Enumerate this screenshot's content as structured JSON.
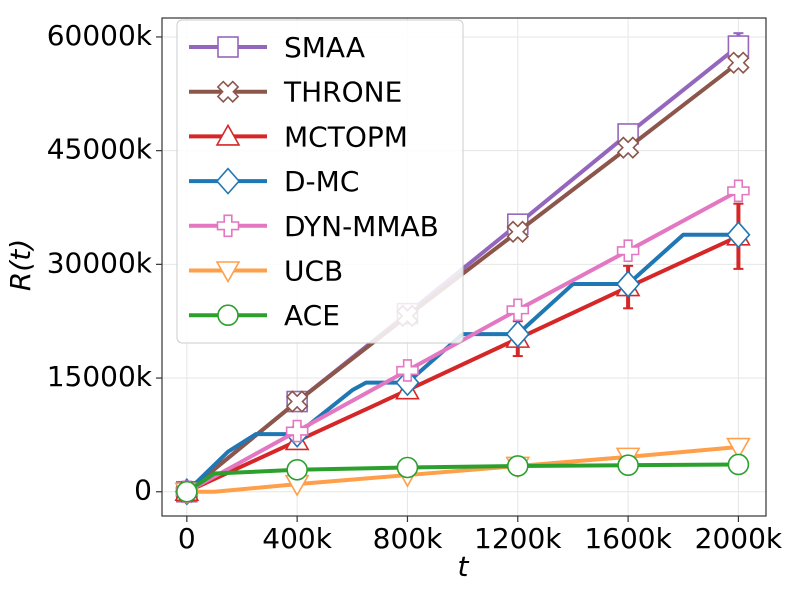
{
  "chart_data": {
    "type": "line",
    "xlabel": "t",
    "ylabel": "R(t)",
    "xlim": [
      -90000,
      2100000
    ],
    "ylim": [
      -3200000,
      62500000
    ],
    "xticks": [
      0,
      {
        "value": 400000,
        "label": "400k"
      },
      {
        "value": 800000,
        "label": "800k"
      },
      {
        "value": 1200000,
        "label": "1200k"
      },
      {
        "value": 1600000,
        "label": "1600k"
      },
      {
        "value": 2000000,
        "label": "2000k"
      }
    ],
    "yticks": [
      0,
      {
        "value": 15000000,
        "label": "15000k"
      },
      {
        "value": 30000000,
        "label": "30000k"
      },
      {
        "value": 45000000,
        "label": "45000k"
      },
      {
        "value": 60000000,
        "label": "60000k"
      }
    ],
    "grid": true,
    "legend": "upper left",
    "series": [
      {
        "name": "SMAA",
        "color": "#9467bd",
        "marker": "square",
        "x": [
          0,
          400000,
          800000,
          1200000,
          1600000,
          2000000
        ],
        "values": [
          0,
          11900000,
          23500000,
          35300000,
          47200000,
          58800000
        ],
        "errors": [
          null,
          null,
          null,
          null,
          800000,
          1700000
        ]
      },
      {
        "name": "THRONE",
        "color": "#8c564b",
        "marker": "x",
        "x": [
          0,
          400000,
          800000,
          1200000,
          1600000,
          2000000
        ],
        "values": [
          0,
          11900000,
          23200000,
          34300000,
          45400000,
          56600000
        ],
        "errors": [
          null,
          null,
          null,
          null,
          null,
          null
        ]
      },
      {
        "name": "MCTOPM",
        "color": "#d62728",
        "marker": "triangle-up",
        "x": [
          0,
          400000,
          800000,
          1200000,
          1600000,
          2000000
        ],
        "values": [
          0,
          6700000,
          13400000,
          20200000,
          27000000,
          33700000
        ],
        "errors": [
          null,
          null,
          900000,
          2300000,
          2800000,
          4300000
        ]
      },
      {
        "name": "D-MC",
        "color": "#1f77b4",
        "marker": "diamond",
        "x": [
          0,
          150000,
          250000,
          400000,
          600000,
          650000,
          800000,
          1000000,
          1200000,
          1400000,
          1600000,
          1800000,
          2000000
        ],
        "values": [
          0,
          5300000,
          7600000,
          7600000,
          13400000,
          14400000,
          14400000,
          20800000,
          20800000,
          27400000,
          27400000,
          33900000,
          33900000
        ],
        "errors": [
          null,
          null,
          null,
          null,
          null,
          null,
          null,
          null,
          null,
          null,
          null,
          null,
          null
        ]
      },
      {
        "name": "DYN-MMAB",
        "color": "#e377c2",
        "marker": "plus",
        "x": [
          0,
          400000,
          800000,
          1200000,
          1600000,
          2000000
        ],
        "values": [
          0,
          8000000,
          16000000,
          24000000,
          31800000,
          39700000
        ],
        "errors": [
          null,
          null,
          null,
          null,
          null,
          null
        ]
      },
      {
        "name": "UCB",
        "color": "#ff9f4a",
        "marker": "triangle-down",
        "x": [
          0,
          100000,
          400000,
          800000,
          1200000,
          1600000,
          2000000
        ],
        "values": [
          0,
          0,
          1000000,
          2200000,
          3400000,
          4600000,
          5900000
        ],
        "errors": [
          null,
          null,
          null,
          null,
          null,
          null,
          null
        ]
      },
      {
        "name": "ACE",
        "color": "#2ca02c",
        "marker": "circle",
        "x": [
          0,
          100000,
          400000,
          800000,
          1200000,
          1600000,
          2000000
        ],
        "values": [
          0,
          2400000,
          2900000,
          3200000,
          3400000,
          3500000,
          3600000
        ],
        "errors": [
          null,
          null,
          null,
          null,
          null,
          null,
          null
        ]
      }
    ]
  }
}
